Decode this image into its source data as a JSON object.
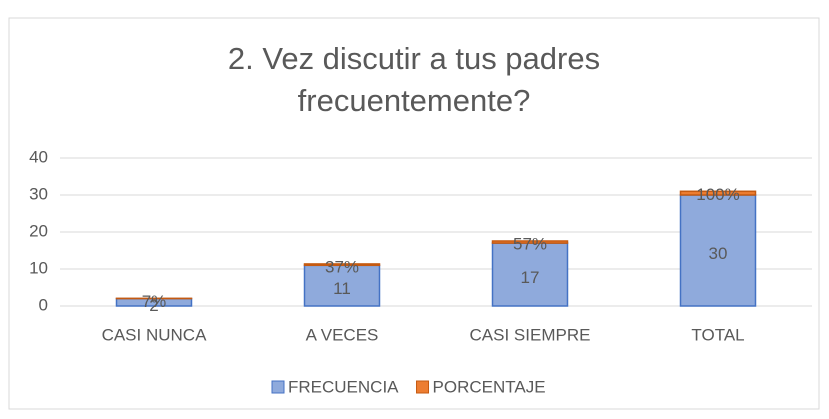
{
  "chart_data": {
    "type": "stacked_bar",
    "title": "2. Vez discutir a tus padres frecuentemente?",
    "categories": [
      "CASI NUNCA",
      "A VECES",
      "CASI SIEMPRE",
      "TOTAL"
    ],
    "series": [
      {
        "name": "FRECUENCIA",
        "color": "#8faadc",
        "values": [
          2,
          11,
          17,
          30
        ]
      },
      {
        "name": "PORCENTAJE",
        "color": "#ed7d31",
        "values": [
          0.07,
          0.37,
          0.57,
          1
        ],
        "value_labels": [
          "7%",
          "37%",
          "57%",
          "100%"
        ]
      }
    ],
    "ylim": [
      0,
      40
    ],
    "yticks": [
      0,
      10,
      20,
      30,
      40
    ],
    "grid": true,
    "legend": "bottom"
  }
}
